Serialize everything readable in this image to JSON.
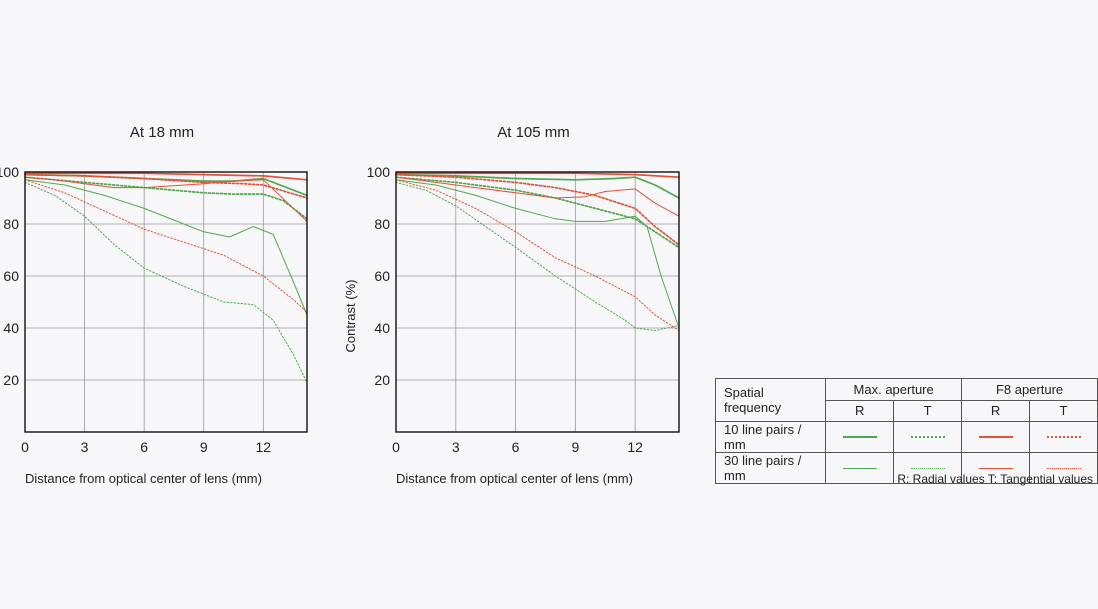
{
  "colors": {
    "max_aperture": "#4fa84f",
    "f8_aperture": "#e4503a",
    "grid": "#999999",
    "frame": "#111111"
  },
  "chart_data": [
    {
      "type": "line",
      "title": "At 18 mm",
      "xlabel": "Distance from optical center of lens (mm)",
      "ylabel": "",
      "xlim": [
        0,
        14.2
      ],
      "ylim": [
        0,
        100
      ],
      "xticks": [
        0,
        3,
        6,
        9,
        12
      ],
      "yticks": [
        20,
        40,
        60,
        80,
        100
      ],
      "grid": true,
      "series": [
        {
          "aperture": "Max. aperture",
          "type": "R",
          "frequency": "10 line pairs / mm",
          "x": [
            0,
            3,
            6,
            9,
            10.5,
            12,
            14.2
          ],
          "y": [
            99,
            98.5,
            97.5,
            96.5,
            96.5,
            97.5,
            91
          ]
        },
        {
          "aperture": "Max. aperture",
          "type": "T",
          "frequency": "10 line pairs / mm",
          "x": [
            0,
            3,
            6,
            9,
            10.5,
            12,
            13,
            14.2
          ],
          "y": [
            98,
            96,
            94,
            92,
            91.5,
            91.5,
            89,
            82
          ]
        },
        {
          "aperture": "F8 aperture",
          "type": "R",
          "frequency": "10 line pairs / mm",
          "x": [
            0,
            3,
            6,
            9,
            12,
            14.2
          ],
          "y": [
            99.5,
            99.5,
            99.5,
            99,
            98.5,
            97
          ]
        },
        {
          "aperture": "F8 aperture",
          "type": "T",
          "frequency": "10 line pairs / mm",
          "x": [
            0,
            3,
            6,
            9,
            11,
            12,
            14.2
          ],
          "y": [
            99,
            98.5,
            97.5,
            96,
            95.5,
            95,
            90
          ]
        },
        {
          "aperture": "Max. aperture",
          "type": "R",
          "frequency": "30 line pairs / mm",
          "x": [
            0,
            2,
            4,
            6,
            8,
            9,
            10.3,
            11.5,
            12.5,
            13.5,
            14.2
          ],
          "y": [
            97,
            95,
            91,
            86,
            80,
            77,
            75,
            79,
            76,
            58,
            45
          ]
        },
        {
          "aperture": "Max. aperture",
          "type": "T",
          "frequency": "30 line pairs / mm",
          "x": [
            0,
            1.5,
            3,
            4.5,
            6,
            8,
            10,
            11.5,
            12.5,
            13.5,
            14.2
          ],
          "y": [
            96,
            91,
            83,
            72,
            63,
            56,
            50,
            49,
            43,
            30,
            19
          ]
        },
        {
          "aperture": "F8 aperture",
          "type": "R",
          "frequency": "30 line pairs / mm",
          "x": [
            0,
            1.5,
            3,
            4.5,
            6,
            9,
            10.5,
            12,
            14.2
          ],
          "y": [
            98,
            97,
            95.5,
            94,
            94,
            95.5,
            96.5,
            97,
            81
          ]
        },
        {
          "aperture": "F8 aperture",
          "type": "T",
          "frequency": "30 line pairs / mm",
          "x": [
            0,
            2,
            4,
            6,
            8,
            10,
            12,
            13.5,
            14.2
          ],
          "y": [
            97,
            92,
            85,
            78,
            73,
            68,
            60,
            51,
            46
          ]
        }
      ]
    },
    {
      "type": "line",
      "title": "At 105 mm",
      "xlabel": "Distance from optical center of lens (mm)",
      "ylabel": "Contrast (%)",
      "xlim": [
        0,
        14.2
      ],
      "ylim": [
        0,
        100
      ],
      "xticks": [
        0,
        3,
        6,
        9,
        12
      ],
      "yticks": [
        20,
        40,
        60,
        80,
        100
      ],
      "grid": true,
      "series": [
        {
          "aperture": "Max. aperture",
          "type": "R",
          "frequency": "10 line pairs / mm",
          "x": [
            0,
            3,
            6,
            9,
            11,
            12,
            13,
            14.2
          ],
          "y": [
            99,
            98.5,
            97.5,
            97,
            97.5,
            98,
            95,
            90
          ]
        },
        {
          "aperture": "Max. aperture",
          "type": "T",
          "frequency": "10 line pairs / mm",
          "x": [
            0,
            3,
            6,
            8,
            10,
            12,
            13,
            14.2
          ],
          "y": [
            98,
            96,
            93,
            90,
            86,
            82,
            77,
            71
          ]
        },
        {
          "aperture": "F8 aperture",
          "type": "R",
          "frequency": "10 line pairs / mm",
          "x": [
            0,
            3,
            6,
            9,
            12,
            14.2
          ],
          "y": [
            99.5,
            99.5,
            99.5,
            99.5,
            99,
            98
          ]
        },
        {
          "aperture": "F8 aperture",
          "type": "T",
          "frequency": "10 line pairs / mm",
          "x": [
            0,
            3,
            6,
            8,
            10,
            12,
            13,
            14.2
          ],
          "y": [
            99,
            98,
            96,
            94,
            91,
            86,
            79,
            72
          ]
        },
        {
          "aperture": "Max. aperture",
          "type": "R",
          "frequency": "30 line pairs / mm",
          "x": [
            0,
            2,
            4,
            6,
            8,
            9,
            10.5,
            12,
            12.6,
            13.3,
            14.2
          ],
          "y": [
            97,
            95,
            91,
            86,
            82,
            81,
            81,
            83,
            79,
            60,
            40
          ]
        },
        {
          "aperture": "Max. aperture",
          "type": "T",
          "frequency": "30 line pairs / mm",
          "x": [
            0,
            1.5,
            3,
            4.5,
            6,
            8,
            10,
            11.5,
            12,
            13,
            14.2
          ],
          "y": [
            96,
            93,
            87,
            79,
            71,
            60,
            50,
            43,
            40,
            39,
            41
          ]
        },
        {
          "aperture": "F8 aperture",
          "type": "R",
          "frequency": "30 line pairs / mm",
          "x": [
            0,
            2,
            4,
            6,
            8,
            9.5,
            10.5,
            12,
            13,
            14.2
          ],
          "y": [
            98,
            96,
            94,
            92,
            90,
            90.5,
            92.5,
            93.5,
            88,
            83
          ]
        },
        {
          "aperture": "F8 aperture",
          "type": "T",
          "frequency": "30 line pairs / mm",
          "x": [
            0,
            2,
            4,
            6,
            8,
            10,
            12,
            13,
            14.2
          ],
          "y": [
            97,
            93,
            86,
            77,
            67,
            60,
            52,
            45,
            39
          ]
        }
      ]
    }
  ],
  "legend": {
    "header_label": "Spatial frequency",
    "group_max": "Max. aperture",
    "group_f8": "F8 aperture",
    "col_r": "R",
    "col_t": "T",
    "row_10": "10 line pairs / mm",
    "row_30": "30 line pairs / mm"
  },
  "note": "R: Radial values  T: Tangential values"
}
